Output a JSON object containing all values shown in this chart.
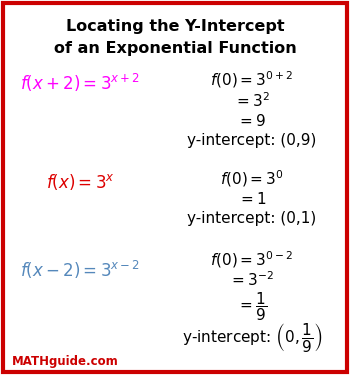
{
  "title_line1": "Locating the Y-Intercept",
  "title_line2": "of an Exponential Function",
  "bg_color": "#ffffff",
  "border_color": "#cc0000",
  "magenta": "#ff00ff",
  "red": "#dd0000",
  "blue": "#5588bb",
  "black": "#000000",
  "mathguide_color": "#cc0000",
  "figsize": [
    3.5,
    3.75
  ],
  "dpi": 100
}
